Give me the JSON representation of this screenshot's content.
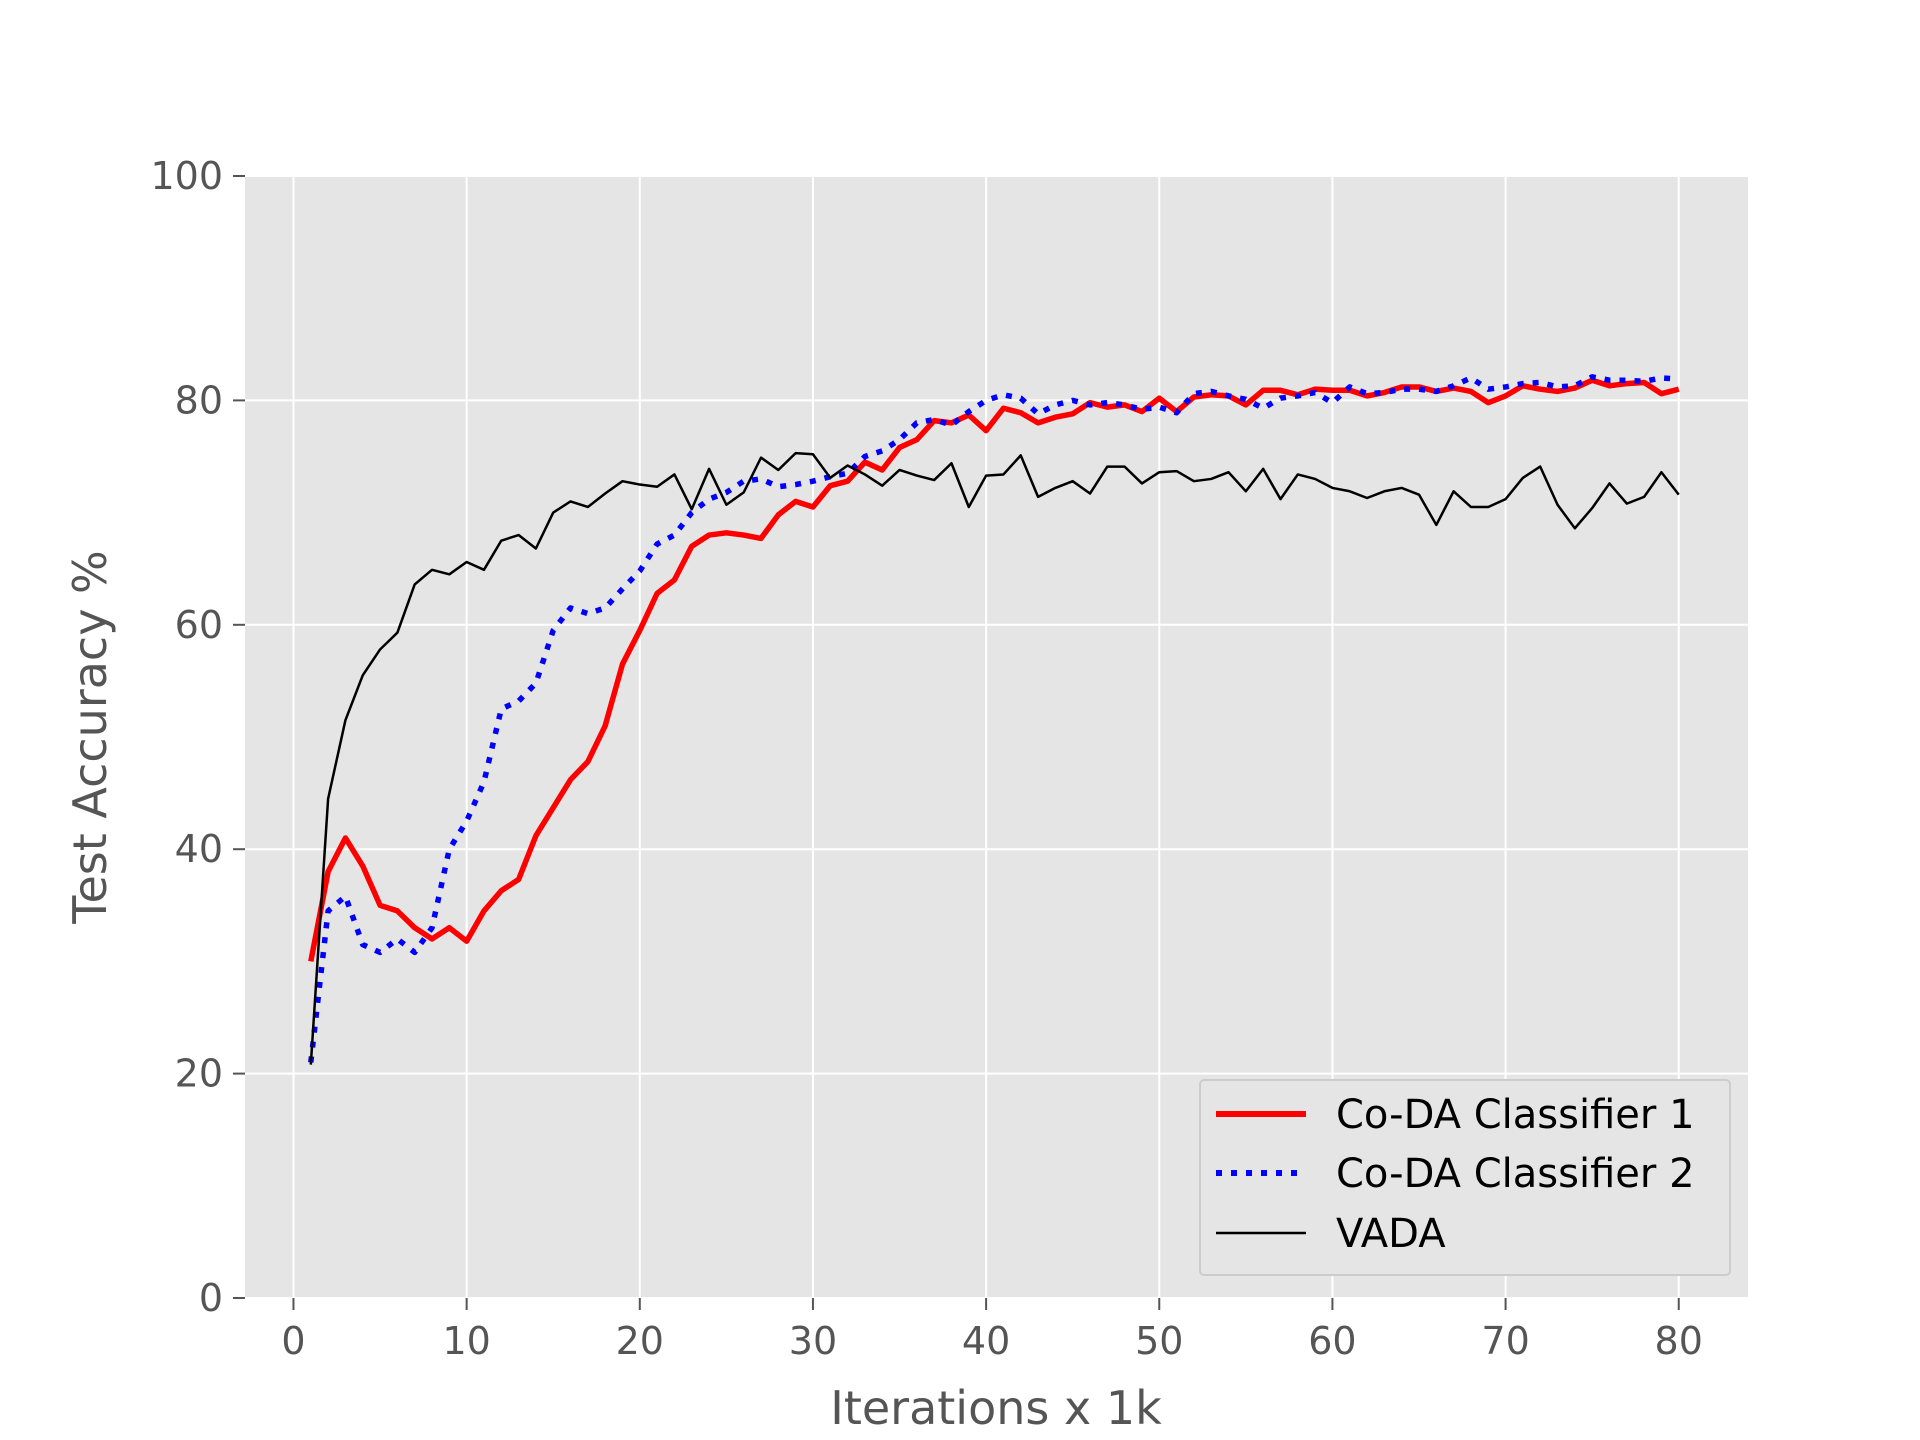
{
  "chart_data": {
    "type": "line",
    "title": "",
    "xlabel": "Iterations x 1k",
    "ylabel": "Test Accuracy %",
    "xlim": [
      -2.8,
      84
    ],
    "ylim": [
      0,
      100
    ],
    "xticks": [
      0,
      10,
      20,
      30,
      40,
      50,
      60,
      70,
      80
    ],
    "yticks": [
      0,
      20,
      40,
      60,
      80,
      100
    ],
    "xtick_labels": [
      "0",
      "10",
      "20",
      "30",
      "40",
      "50",
      "60",
      "70",
      "80"
    ],
    "ytick_labels": [
      "0",
      "20",
      "40",
      "60",
      "80",
      "100"
    ],
    "grid": true,
    "legend": "bottom-right",
    "x": [
      1,
      2,
      3,
      4,
      5,
      6,
      7,
      8,
      9,
      10,
      11,
      12,
      13,
      14,
      15,
      16,
      17,
      18,
      19,
      20,
      21,
      22,
      23,
      24,
      25,
      26,
      27,
      28,
      29,
      30,
      31,
      32,
      33,
      34,
      35,
      36,
      37,
      38,
      39,
      40,
      41,
      42,
      43,
      44,
      45,
      46,
      47,
      48,
      49,
      50,
      51,
      52,
      53,
      54,
      55,
      56,
      57,
      58,
      59,
      60,
      61,
      62,
      63,
      64,
      65,
      66,
      67,
      68,
      69,
      70,
      71,
      72,
      73,
      74,
      75,
      76,
      77,
      78,
      79,
      80
    ],
    "series": [
      {
        "name": "Co-DA Classifier 1",
        "color": "#ff0000",
        "style": "solid-thick",
        "values": [
          30,
          38,
          41,
          38.5,
          35,
          34.5,
          33,
          32,
          33,
          31.8,
          34.5,
          36.3,
          37.3,
          41.2,
          43.7,
          46.2,
          47.8,
          51,
          56.5,
          59.5,
          62.8,
          64,
          67,
          68,
          68.2,
          68,
          67.7,
          69.8,
          71,
          70.5,
          72.4,
          72.8,
          74.5,
          73.8,
          75.8,
          76.5,
          78.2,
          78,
          78.7,
          77.3,
          79.3,
          78.9,
          78,
          78.5,
          78.8,
          79.8,
          79.4,
          79.6,
          79,
          80.2,
          79,
          80.3,
          80.5,
          80.4,
          79.6,
          80.9,
          80.9,
          80.5,
          81,
          80.9,
          80.9,
          80.4,
          80.7,
          81.2,
          81.2,
          80.8,
          81.1,
          80.8,
          79.8,
          80.4,
          81.3,
          81,
          80.8,
          81.1,
          81.8,
          81.3,
          81.5,
          81.6,
          80.6,
          81
        ]
      },
      {
        "name": "Co-DA Classifier 2",
        "color": "#0000ff",
        "style": "dotted-thick",
        "values": [
          21,
          34.5,
          35.8,
          31.5,
          30.8,
          32,
          30.8,
          33,
          40,
          42.5,
          46,
          52.5,
          53.2,
          54.8,
          59.5,
          61.5,
          61,
          61.5,
          63.2,
          64.8,
          67.2,
          68,
          70,
          71.2,
          71.8,
          72.8,
          73,
          72.3,
          72.5,
          72.8,
          73.2,
          73.5,
          75,
          75.5,
          76.5,
          78,
          78.3,
          77.8,
          79,
          80,
          80.5,
          80.2,
          78.8,
          79.6,
          80,
          79.6,
          79.8,
          79.6,
          79.2,
          79.4,
          78.9,
          80.6,
          80.8,
          80.4,
          80.1,
          79.3,
          80.2,
          80.4,
          80.7,
          79.8,
          81.2,
          80.6,
          80.7,
          81,
          81,
          80.8,
          81.3,
          82,
          81,
          81.2,
          81.5,
          81.6,
          81.2,
          81.3,
          82.1,
          81.8,
          81.8,
          81.7,
          82,
          81.9
        ]
      },
      {
        "name": "VADA",
        "color": "#000000",
        "style": "solid-thin",
        "values": [
          20.8,
          44.5,
          51.5,
          55.5,
          57.8,
          59.3,
          63.6,
          64.9,
          64.5,
          65.6,
          64.9,
          67.5,
          68,
          66.8,
          70,
          71,
          70.5,
          71.7,
          72.8,
          72.5,
          72.3,
          73.4,
          70.3,
          73.9,
          70.7,
          71.8,
          74.9,
          73.8,
          75.3,
          75.2,
          73.1,
          74.2,
          73.4,
          72.4,
          73.8,
          73.3,
          72.9,
          74.4,
          70.5,
          73.3,
          73.4,
          75.1,
          71.4,
          72.2,
          72.8,
          71.7,
          74.1,
          74.1,
          72.6,
          73.6,
          73.7,
          72.8,
          73,
          73.6,
          71.9,
          73.9,
          71.2,
          73.4,
          73,
          72.2,
          71.9,
          71.3,
          71.9,
          72.2,
          71.6,
          68.9,
          71.9,
          70.5,
          70.5,
          71.2,
          73.1,
          74.1,
          70.7,
          68.6,
          70.4,
          72.6,
          70.8,
          71.4,
          73.6,
          71.6
        ]
      }
    ],
    "colors": {
      "plot_background": "#e5e5e5",
      "grid": "#ffffff",
      "tick_label": "#555555",
      "legend_background": "#e5e5e5",
      "legend_border": "#cccccc"
    }
  }
}
